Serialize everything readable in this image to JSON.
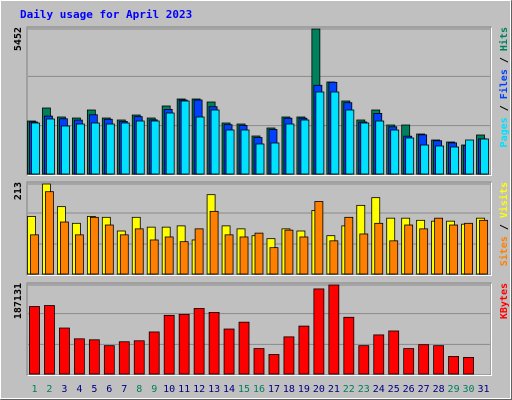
{
  "chart_data": [
    {
      "type": "bar",
      "title": "Daily usage for April 2023",
      "ylim": [
        0,
        5452
      ],
      "yticks": [
        5452
      ],
      "grid_divisions": 3,
      "legend_separator": " / ",
      "series": [
        {
          "name": "Hits",
          "color": "#00805c",
          "values": [
            2016,
            2502,
            2166,
            2128,
            2427,
            2128,
            2054,
            2240,
            2128,
            2577,
            2838,
            2838,
            2726,
            1942,
            1904,
            1456,
            1755,
            2166,
            2166,
            5452,
            3473,
            2763,
            2054,
            2427,
            1867,
            1867,
            1531,
            1307,
            1232,
            1120,
            1494
          ]
        },
        {
          "name": "Files",
          "color": "#0040ff",
          "values": [
            1980,
            2200,
            2100,
            2050,
            2250,
            2080,
            2000,
            2180,
            2060,
            2450,
            2800,
            2800,
            2550,
            1880,
            1850,
            1400,
            1700,
            2120,
            2120,
            3350,
            3460,
            2700,
            1980,
            2300,
            1800,
            1450,
            1500,
            1280,
            1200,
            1100,
            1350
          ]
        },
        {
          "name": "Pages",
          "color": "#00e0ff",
          "values": [
            1942,
            2091,
            1830,
            1904,
            1942,
            1904,
            1942,
            2016,
            2016,
            2315,
            2763,
            2166,
            2427,
            1680,
            1680,
            1158,
            1195,
            1904,
            2054,
            3099,
            3099,
            2427,
            1942,
            2016,
            1680,
            1382,
            1120,
            1083,
            1046,
            1307,
            1344
          ]
        }
      ]
    },
    {
      "type": "bar",
      "ylim": [
        0,
        213
      ],
      "yticks": [
        213
      ],
      "grid_divisions": 3,
      "legend_separator": " / ",
      "series": [
        {
          "name": "Visits",
          "color": "#ffff00",
          "values": [
            137,
            213,
            160,
            121,
            137,
            135,
            103,
            135,
            112,
            112,
            115,
            82,
            188,
            115,
            108,
            92,
            85,
            108,
            103,
            151,
            92,
            115,
            163,
            181,
            133,
            133,
            128,
            126,
            126,
            119,
            133
          ]
        },
        {
          "name": "Sites",
          "color": "#ff8000",
          "values": [
            94,
            195,
            124,
            94,
            135,
            117,
            94,
            108,
            82,
            89,
            78,
            108,
            149,
            94,
            89,
            98,
            64,
            105,
            89,
            172,
            80,
            135,
            96,
            121,
            80,
            117,
            108,
            133,
            117,
            121,
            128
          ]
        }
      ]
    },
    {
      "type": "bar",
      "ylim": [
        0,
        187131
      ],
      "yticks": [
        187131
      ],
      "grid_divisions": 3,
      "series": [
        {
          "name": "KBytes",
          "color": "#ff0000",
          "values": [
            142380,
            144414,
            97632,
            75258,
            73224,
            61020,
            69156,
            71190,
            89496,
            124074,
            126108,
            138312,
            130176,
            95598,
            109836,
            54918,
            42714,
            79326,
            101700,
            178992,
            187131,
            120006,
            61020,
            83394,
            91530,
            54918,
            63054,
            61020,
            38646,
            36612,
            null
          ]
        }
      ],
      "categories": [
        "1",
        "2",
        "3",
        "4",
        "5",
        "6",
        "7",
        "8",
        "9",
        "10",
        "11",
        "12",
        "13",
        "14",
        "15",
        "16",
        "17",
        "18",
        "19",
        "20",
        "21",
        "22",
        "23",
        "24",
        "25",
        "26",
        "27",
        "28",
        "29",
        "30",
        "31"
      ],
      "category_colors": [
        "#00805c",
        "#00805c",
        "#000080",
        "#000080",
        "#000080",
        "#000080",
        "#000080",
        "#00805c",
        "#00805c",
        "#000080",
        "#000080",
        "#000080",
        "#000080",
        "#000080",
        "#00805c",
        "#00805c",
        "#000080",
        "#000080",
        "#000080",
        "#000080",
        "#000080",
        "#00805c",
        "#00805c",
        "#000080",
        "#000080",
        "#000080",
        "#000080",
        "#000080",
        "#00805c",
        "#00805c",
        "#000080"
      ]
    }
  ]
}
